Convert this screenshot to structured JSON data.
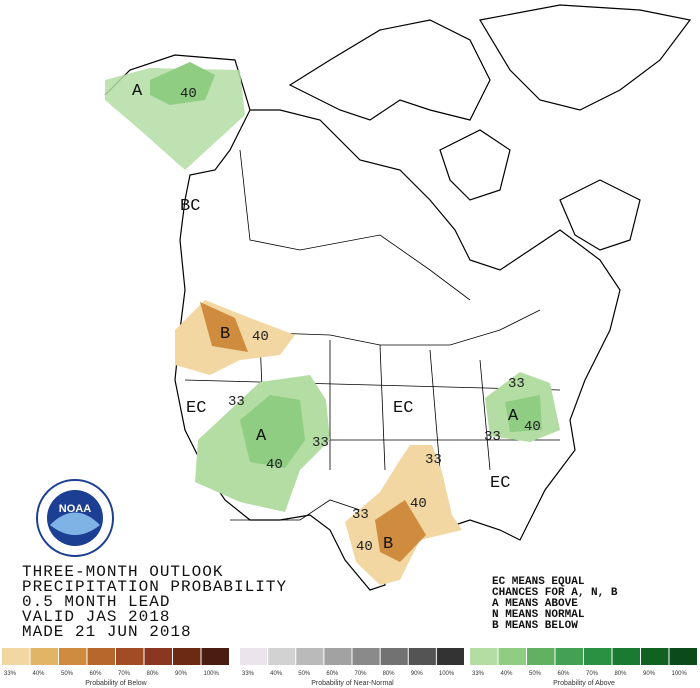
{
  "map_labels": {
    "alaska": [
      "A",
      "40"
    ],
    "british_columbia": "BC",
    "northwest": [
      "B",
      "40"
    ],
    "west": "EC",
    "rockies": [
      "33",
      "A",
      "33",
      "40"
    ],
    "central": "EC",
    "east": [
      "33",
      "A",
      "33",
      "40"
    ],
    "gulf": [
      "33",
      "40",
      "33",
      "B",
      "40"
    ],
    "southeast": "EC"
  },
  "logo": "NOAA",
  "title_block": [
    "THREE-MONTH OUTLOOK",
    "PRECIPITATION PROBABILITY",
    "0.5 MONTH LEAD",
    "VALID JAS 2018",
    "MADE 21 JUN 2018"
  ],
  "key": [
    "EC MEANS EQUAL",
    "CHANCES FOR A, N, B",
    "A MEANS ABOVE",
    "N MEANS NORMAL",
    "B MEANS BELOW"
  ],
  "legend": [
    {
      "title": "Probability of Below",
      "ticks": [
        "33%",
        "40%",
        "50%",
        "60%",
        "70%",
        "80%",
        "90%",
        "100%"
      ],
      "colors": [
        "#f2d7a2",
        "#e2b466",
        "#cf8c3e",
        "#b8672c",
        "#a24c26",
        "#8a3620",
        "#6c2a12",
        "#4a1c12"
      ]
    },
    {
      "title": "Probability of Near-Normal",
      "ticks": [
        "33%",
        "40%",
        "50%",
        "60%",
        "70%",
        "80%",
        "90%",
        "100%"
      ],
      "colors": [
        "#ece4ec",
        "#d2d2d2",
        "#bababa",
        "#a2a2a2",
        "#8a8a8a",
        "#727272",
        "#545454",
        "#333333"
      ]
    },
    {
      "title": "Probability of Above",
      "ticks": [
        "33%",
        "40%",
        "50%",
        "60%",
        "70%",
        "80%",
        "90%",
        "100%"
      ],
      "colors": [
        "#b3dda3",
        "#8ecd82",
        "#62b162",
        "#42a152",
        "#2b9142",
        "#1b7a31",
        "#116121",
        "#0b4a19"
      ]
    }
  ]
}
